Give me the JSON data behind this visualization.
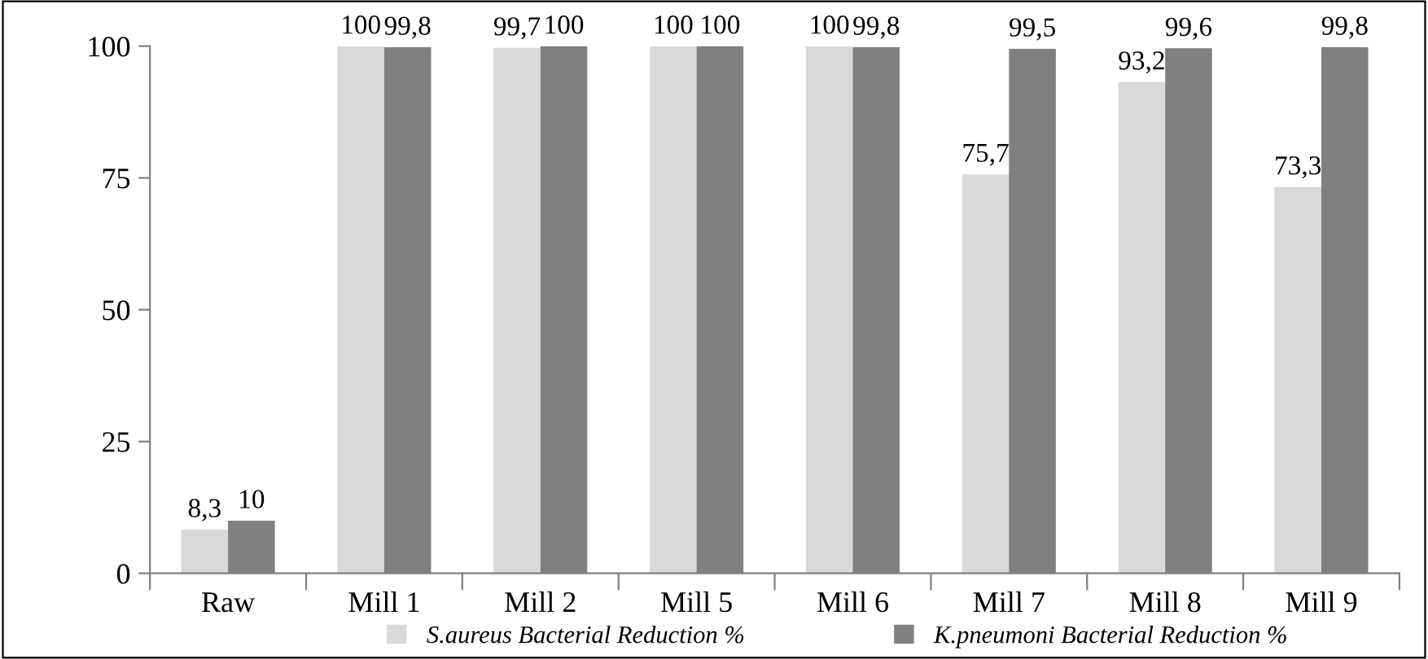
{
  "chart_data": {
    "type": "bar",
    "categories": [
      "Raw",
      "Mill 1",
      "Mill 2",
      "Mill 5",
      "Mill 6",
      "Mill 7",
      "Mill 8",
      "Mill 9"
    ],
    "series": [
      {
        "name": "S.aureus Bacterial Reduction %",
        "color": "#d9d9d9",
        "values": [
          8.3,
          100,
          99.7,
          100,
          100,
          75.7,
          93.2,
          73.3
        ],
        "value_labels": [
          "8,3",
          "100",
          "99,7",
          "100",
          "100",
          "75,7",
          "93,2",
          "73,3"
        ]
      },
      {
        "name": "K.pneumoni Bacterial Reduction %",
        "color": "#808080",
        "values": [
          10,
          99.8,
          100,
          100,
          99.8,
          99.5,
          99.6,
          99.8
        ],
        "value_labels": [
          "10",
          "99,8",
          "100",
          "100",
          "99,8",
          "99,5",
          "99,6",
          "99,8"
        ]
      }
    ],
    "ylim": [
      0,
      100
    ],
    "yticks": [
      0,
      25,
      50,
      75,
      100
    ],
    "grid": false,
    "legend": "bottom"
  }
}
